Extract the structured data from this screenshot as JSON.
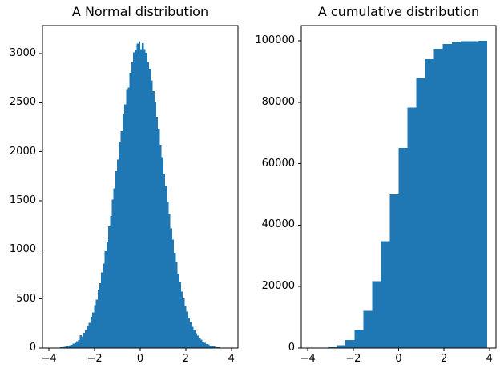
{
  "figure": {
    "background": "#ffffff",
    "bar_color": "#1f77b4",
    "axis_color": "#000000",
    "text_color": "#000000"
  },
  "chart_data": [
    {
      "type": "bar",
      "subtype": "histogram",
      "name": "normal-histogram",
      "title": "A Normal distribution",
      "xlabel": "",
      "ylabel": "",
      "bin_start": -3.9,
      "bin_width": 0.078,
      "values": [
        2,
        2,
        3,
        4,
        6,
        8,
        10,
        13,
        17,
        20,
        28,
        33,
        44,
        53,
        69,
        82,
        131,
        118,
        155,
        180,
        225,
        258,
        316,
        362,
        436,
        495,
        588,
        660,
        770,
        858,
        988,
        1086,
        1238,
        1346,
        1512,
        1628,
        1800,
        1920,
        2096,
        2210,
        2380,
        2482,
        2638,
        2652,
        2804,
        2910,
        3012,
        3040,
        3102,
        3128,
        3046,
        3106,
        3044,
        3008,
        2915,
        2846,
        2728,
        2615,
        2508,
        2356,
        2232,
        2072,
        1945,
        1778,
        1650,
        1490,
        1366,
        1218,
        1105,
        972,
        872,
        756,
        672,
        575,
        506,
        426,
        371,
        308,
        266,
        218,
        186,
        150,
        127,
        101,
        85,
        66,
        55,
        42,
        35,
        26,
        22,
        16,
        13,
        10,
        7,
        6,
        4,
        3,
        2,
        2
      ],
      "xlim": [
        -4.29,
        4.29
      ],
      "ylim": [
        0,
        3285
      ],
      "xticks": [
        -4,
        -2,
        0,
        2,
        4
      ],
      "xtick_labels": [
        "−4",
        "−2",
        "0",
        "2",
        "4"
      ],
      "yticks": [
        0,
        500,
        1000,
        1500,
        2000,
        2500,
        3000
      ],
      "ytick_labels": [
        "0",
        "500",
        "1000",
        "1500",
        "2000",
        "2500",
        "3000"
      ],
      "grid": false,
      "legend": null
    },
    {
      "type": "bar",
      "subtype": "cumulative-histogram",
      "name": "cumulative-histogram",
      "title": "A cumulative distribution",
      "xlabel": "",
      "ylabel": "",
      "bin_start": -3.9,
      "bin_width": 0.39,
      "values": [
        24,
        95,
        322,
        978,
        2576,
        5957,
        12091,
        21789,
        34842,
        50006,
        65189,
        78255,
        87891,
        94071,
        97438,
        99040,
        99686,
        99912,
        99979,
        100000
      ],
      "xlim": [
        -4.29,
        4.29
      ],
      "ylim": [
        0,
        105000
      ],
      "xticks": [
        -4,
        -2,
        0,
        2,
        4
      ],
      "xtick_labels": [
        "−4",
        "−2",
        "0",
        "2",
        "4"
      ],
      "yticks": [
        0,
        20000,
        40000,
        60000,
        80000,
        100000
      ],
      "ytick_labels": [
        "0",
        "20000",
        "40000",
        "60000",
        "80000",
        "100000"
      ],
      "grid": false,
      "legend": null
    }
  ]
}
